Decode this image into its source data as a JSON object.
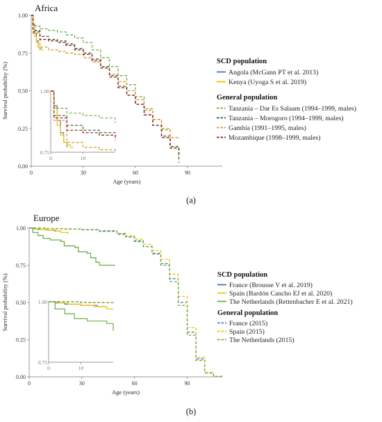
{
  "colors": {
    "blue": "#4f72be",
    "yellow": "#f2c100",
    "green_light": "#70ad47",
    "green_dark": "#375623",
    "orange": "#d49a2e",
    "darkred": "#8b1f14",
    "axis": "#9a9a9a"
  },
  "chart_data": [
    {
      "type": "line",
      "panel_label": "(a)",
      "region_title": "Africa",
      "xlabel": "Age (years)",
      "ylabel": "Survival probability (%)",
      "xlim": [
        0,
        110
      ],
      "ylim": [
        0,
        1
      ],
      "x_ticks": [
        "0",
        "30",
        "60",
        "90"
      ],
      "y_ticks": [
        "0.00",
        "0.25",
        "0.50",
        "0.75",
        "1.00"
      ],
      "legend_groups": [
        "SCD population",
        "General population"
      ],
      "series": [
        {
          "name": "Angola (McGann PT et al. 2013)",
          "group": "SCD population",
          "color": "#4f72be",
          "dash": false,
          "x": [
            0,
            1,
            2,
            3,
            4,
            5
          ],
          "y": [
            1.0,
            0.94,
            0.88,
            0.83,
            0.79,
            0.77
          ]
        },
        {
          "name": "Kenya (Uyoga S et al. 2019)",
          "group": "SCD population",
          "color": "#f2c100",
          "dash": false,
          "x": [
            0,
            1,
            2,
            3,
            4,
            5,
            6,
            7
          ],
          "y": [
            1.0,
            0.93,
            0.86,
            0.82,
            0.79,
            0.78,
            0.77,
            0.77
          ]
        },
        {
          "name": "Tanzania – Dar Es Salaam (1994–1999, males)",
          "group": "General population",
          "color": "#70ad47",
          "dash": true,
          "x": [
            0,
            1,
            5,
            10,
            15,
            20,
            25,
            30,
            35,
            40,
            45,
            50,
            55,
            60,
            65,
            70,
            75,
            80,
            85
          ],
          "y": [
            1.0,
            0.93,
            0.91,
            0.9,
            0.89,
            0.87,
            0.85,
            0.82,
            0.77,
            0.72,
            0.66,
            0.6,
            0.54,
            0.46,
            0.38,
            0.31,
            0.24,
            0.12,
            0.02
          ]
        },
        {
          "name": "Tanzania – Morogoro (1994–1999, males)",
          "group": "General population",
          "color": "#375623",
          "dash": true,
          "x": [
            0,
            1,
            5,
            10,
            15,
            20,
            25,
            30,
            35,
            40,
            45,
            50,
            55,
            60,
            65,
            70,
            75,
            80,
            85
          ],
          "y": [
            1.0,
            0.9,
            0.86,
            0.84,
            0.83,
            0.81,
            0.78,
            0.75,
            0.71,
            0.66,
            0.6,
            0.53,
            0.47,
            0.41,
            0.34,
            0.27,
            0.2,
            0.13,
            0.05
          ]
        },
        {
          "name": "Gambia (1991–1995, males)",
          "group": "General population",
          "color": "#d49a2e",
          "dash": true,
          "x": [
            0,
            1,
            5,
            10,
            15,
            20,
            25,
            30,
            35,
            40,
            45,
            50,
            55,
            60,
            65,
            70,
            75,
            80,
            85
          ],
          "y": [
            1.0,
            0.88,
            0.79,
            0.77,
            0.76,
            0.75,
            0.74,
            0.72,
            0.69,
            0.65,
            0.61,
            0.56,
            0.5,
            0.44,
            0.37,
            0.31,
            0.25,
            0.19,
            0.18
          ]
        },
        {
          "name": "Mozambique (1998–1999, males)",
          "group": "General population",
          "color": "#8b1f14",
          "dash": true,
          "x": [
            0,
            1,
            5,
            10,
            15,
            20,
            25,
            30,
            35,
            40,
            45,
            50,
            55,
            60,
            65,
            70,
            75,
            80,
            85
          ],
          "y": [
            1.0,
            0.89,
            0.84,
            0.83,
            0.82,
            0.8,
            0.77,
            0.74,
            0.7,
            0.65,
            0.59,
            0.52,
            0.47,
            0.41,
            0.34,
            0.27,
            0.19,
            0.12,
            0.08
          ]
        }
      ],
      "inset": {
        "xlim": [
          0,
          20
        ],
        "ylim": [
          0.75,
          1.0
        ],
        "x_ticks": [
          "0",
          "10"
        ],
        "y_ticks": [
          "0.75",
          "1.00"
        ]
      }
    },
    {
      "type": "line",
      "panel_label": "(b)",
      "region_title": "Europe",
      "xlabel": "Age (years)",
      "ylabel": "Survival probability (%)",
      "xlim": [
        0,
        110
      ],
      "ylim": [
        0,
        1
      ],
      "x_ticks": [
        "0",
        "30",
        "60",
        "90"
      ],
      "y_ticks": [
        "0.00",
        "0.25",
        "0.50",
        "0.75",
        "1.00"
      ],
      "legend_groups": [
        "SCD population",
        "General population"
      ],
      "series": [
        {
          "name": "France (Brousse V et al. 2019)",
          "group": "SCD population",
          "color": "#4f72be",
          "dash": false,
          "x": [
            0,
            2,
            5,
            10,
            15,
            18
          ],
          "y": [
            1.0,
            0.995,
            0.99,
            0.985,
            0.98,
            0.98
          ]
        },
        {
          "name": "Spain (Bardón Cancho EJ et al. 2020)",
          "group": "SCD population",
          "color": "#f2c100",
          "dash": false,
          "x": [
            0,
            3,
            6,
            10,
            14,
            18,
            22
          ],
          "y": [
            1.0,
            0.995,
            0.99,
            0.985,
            0.98,
            0.97,
            0.96
          ]
        },
        {
          "name": "The Netherlands (Rettenbacher E et al. 2021)",
          "group": "SCD population",
          "color": "#70ad47",
          "dash": false,
          "x": [
            0,
            2,
            5,
            8,
            12,
            18,
            20,
            26,
            28,
            33,
            35,
            38,
            40,
            49
          ],
          "y": [
            1.0,
            0.97,
            0.95,
            0.93,
            0.92,
            0.91,
            0.88,
            0.87,
            0.84,
            0.83,
            0.8,
            0.77,
            0.75,
            0.75
          ]
        },
        {
          "name": "France (2015)",
          "group": "General population",
          "color": "#4f72be",
          "dash": true,
          "x": [
            0,
            10,
            20,
            30,
            40,
            50,
            55,
            60,
            65,
            70,
            75,
            80,
            85,
            90,
            95,
            100,
            105,
            110
          ],
          "y": [
            1.0,
            0.996,
            0.993,
            0.988,
            0.978,
            0.958,
            0.94,
            0.91,
            0.875,
            0.83,
            0.76,
            0.66,
            0.5,
            0.3,
            0.12,
            0.03,
            0.003,
            0
          ]
        },
        {
          "name": "Spain (2015)",
          "group": "General population",
          "color": "#f2c100",
          "dash": true,
          "x": [
            0,
            10,
            20,
            30,
            40,
            50,
            55,
            60,
            65,
            70,
            75,
            80,
            85,
            90,
            95,
            100,
            105,
            110
          ],
          "y": [
            1.0,
            0.997,
            0.994,
            0.99,
            0.982,
            0.965,
            0.948,
            0.925,
            0.89,
            0.85,
            0.79,
            0.69,
            0.54,
            0.33,
            0.13,
            0.03,
            0.003,
            0
          ]
        },
        {
          "name": "The Netherlands (2015)",
          "group": "General population",
          "color": "#70ad47",
          "dash": true,
          "x": [
            0,
            10,
            20,
            30,
            40,
            50,
            55,
            60,
            65,
            70,
            75,
            80,
            85,
            90,
            95,
            100,
            105,
            110
          ],
          "y": [
            1.0,
            0.996,
            0.994,
            0.99,
            0.982,
            0.962,
            0.942,
            0.915,
            0.875,
            0.825,
            0.75,
            0.64,
            0.48,
            0.28,
            0.11,
            0.025,
            0.002,
            0
          ]
        }
      ],
      "inset": {
        "xlim": [
          0,
          20
        ],
        "ylim": [
          0.75,
          1.0
        ],
        "x_ticks": [
          "0",
          "10"
        ],
        "y_ticks": [
          "0.75",
          "1.00"
        ]
      }
    }
  ]
}
